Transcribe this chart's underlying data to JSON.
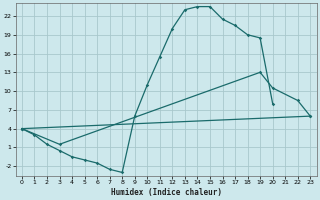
{
  "xlabel": "Humidex (Indice chaleur)",
  "background_color": "#cde8ec",
  "grid_color": "#a8c8cc",
  "line_color": "#1a6b6b",
  "xlim": [
    -0.5,
    23.5
  ],
  "ylim": [
    -3.5,
    24.0
  ],
  "xticks": [
    0,
    1,
    2,
    3,
    4,
    5,
    6,
    7,
    8,
    9,
    10,
    11,
    12,
    13,
    14,
    15,
    16,
    17,
    18,
    19,
    20,
    21,
    22,
    23
  ],
  "yticks": [
    -2,
    1,
    4,
    7,
    10,
    13,
    16,
    19,
    22
  ],
  "line1_x": [
    0,
    1,
    2,
    3,
    4,
    5,
    6,
    7,
    8,
    9,
    10,
    11,
    12,
    13,
    14,
    15,
    16,
    17,
    18,
    19,
    20
  ],
  "line1_y": [
    4.0,
    3.0,
    1.5,
    0.5,
    -0.5,
    -1.0,
    -1.5,
    -2.5,
    -3.0,
    6.0,
    11.0,
    15.5,
    20.0,
    23.0,
    23.5,
    23.5,
    21.5,
    20.5,
    19.0,
    18.5,
    8.0
  ],
  "line2_x": [
    0,
    3,
    19,
    20,
    22,
    23
  ],
  "line2_y": [
    4.0,
    1.5,
    13.0,
    10.5,
    8.5,
    6.0
  ],
  "line3_x": [
    0,
    23
  ],
  "line3_y": [
    4.0,
    6.0
  ]
}
